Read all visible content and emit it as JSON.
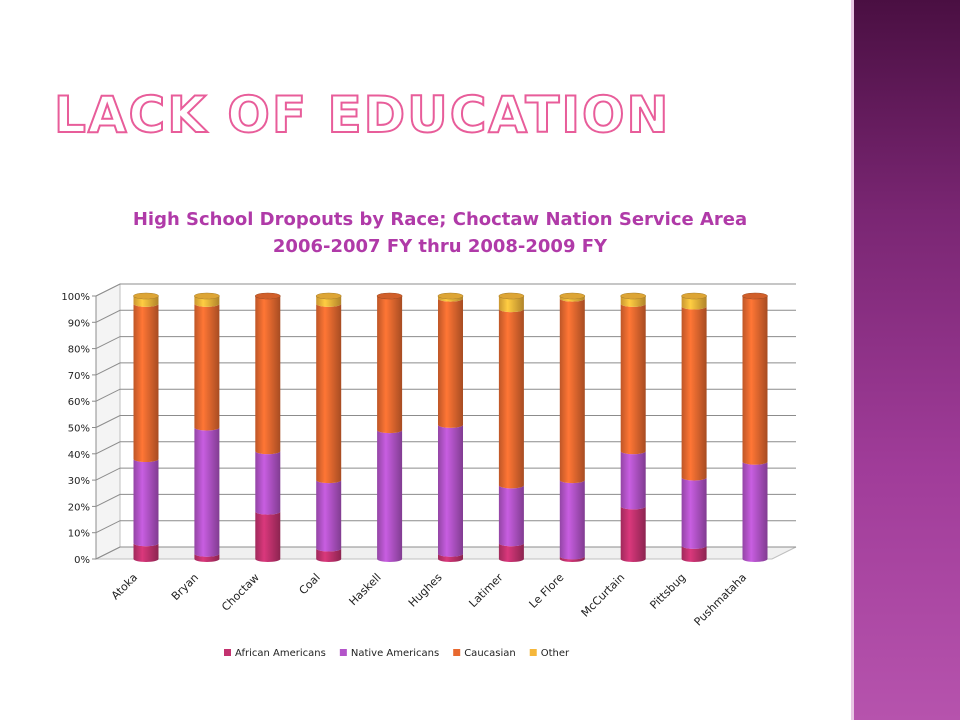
{
  "slide": {
    "title": "Lack of Education"
  },
  "chart_data": {
    "type": "bar",
    "stacked": true,
    "percent_stacked": true,
    "title_lines": [
      "High School Dropouts by Race; Choctaw Nation Service Area",
      "2006-2007 FY thru 2008-2009 FY"
    ],
    "categories": [
      "Atoka",
      "Bryan",
      "Choctaw",
      "Coal",
      "Haskell",
      "Hughes",
      "Latimer",
      "Le Flore",
      "McCurtain",
      "Pittsbug",
      "Pushmataha"
    ],
    "series": [
      {
        "name": "African Americans",
        "color": "#c3326f",
        "values": [
          6,
          2,
          18,
          4,
          0,
          2,
          6,
          1,
          20,
          5,
          0
        ]
      },
      {
        "name": "Native Americans",
        "color": "#b354c9",
        "values": [
          32,
          48,
          23,
          26,
          49,
          49,
          22,
          29,
          21,
          26,
          37
        ]
      },
      {
        "name": "Caucasian",
        "color": "#e8692f",
        "values": [
          59,
          47,
          59,
          67,
          51,
          48,
          67,
          69,
          56,
          65,
          63
        ]
      },
      {
        "name": "Other",
        "color": "#f5b73b",
        "values": [
          3,
          3,
          0,
          3,
          0,
          1,
          5,
          1,
          3,
          4,
          0
        ]
      }
    ],
    "yticks": [
      "0%",
      "10%",
      "20%",
      "30%",
      "40%",
      "50%",
      "60%",
      "70%",
      "80%",
      "90%",
      "100%"
    ],
    "ylim": [
      0,
      100
    ],
    "grid": true,
    "legend_position": "bottom"
  }
}
